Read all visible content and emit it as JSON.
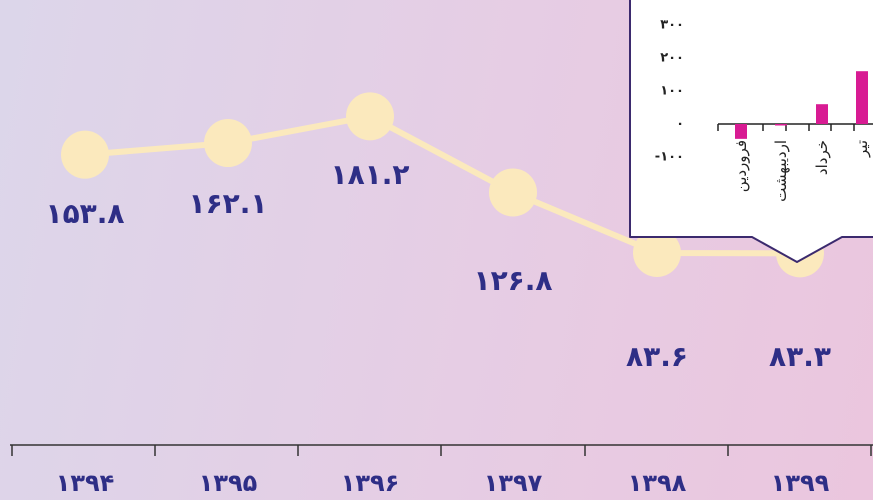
{
  "colors": {
    "line": "#fbe9bd",
    "point": "#fbe9bd",
    "value_text": "#2e2e86",
    "axis": "#333333",
    "inset_bar": "#d81b93",
    "inset_bg": "#ffffff",
    "inset_border": "#3b2a6e"
  },
  "chart_data": [
    {
      "type": "line",
      "x": [
        "۱۳۹۴",
        "۱۳۹۵",
        "۱۳۹۶",
        "۱۳۹۷",
        "۱۳۹۸",
        "۱۳۹۹"
      ],
      "values": [
        153.8,
        162.1,
        181.2,
        126.8,
        83.6,
        83.3
      ],
      "value_labels": [
        "۱۵۳.۸",
        "۱۶۲.۱",
        "۱۸۱.۲",
        "۱۲۶.۸",
        "۸۳.۶",
        "۸۳.۳"
      ],
      "title": "",
      "xlabel": "",
      "ylabel": "",
      "grid": false,
      "legend": "none"
    },
    {
      "type": "bar",
      "categories": [
        "فروردین",
        "اردیبهشت",
        "خرداد",
        "تیر"
      ],
      "values": [
        -45,
        -3,
        60,
        160
      ],
      "yticks": [
        "۳۰۰",
        "۲۰۰",
        "۱۰۰",
        "۰",
        "-۱۰۰"
      ],
      "ylim": [
        -100,
        300
      ],
      "title": "",
      "xlabel": "",
      "ylabel": "",
      "grid": false,
      "legend": "none"
    }
  ]
}
